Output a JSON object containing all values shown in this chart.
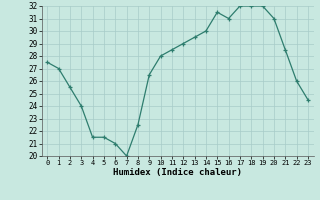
{
  "x": [
    0,
    1,
    2,
    3,
    4,
    5,
    6,
    7,
    8,
    9,
    10,
    11,
    12,
    13,
    14,
    15,
    16,
    17,
    18,
    19,
    20,
    21,
    22,
    23
  ],
  "y": [
    27.5,
    27.0,
    25.5,
    24.0,
    21.5,
    21.5,
    21.0,
    20.0,
    22.5,
    26.5,
    28.0,
    28.5,
    29.0,
    29.5,
    30.0,
    31.5,
    31.0,
    32.0,
    32.0,
    32.0,
    31.0,
    28.5,
    26.0,
    24.5
  ],
  "xlabel": "Humidex (Indice chaleur)",
  "ylim": [
    20,
    32
  ],
  "xlim": [
    -0.5,
    23.5
  ],
  "yticks": [
    20,
    21,
    22,
    23,
    24,
    25,
    26,
    27,
    28,
    29,
    30,
    31,
    32
  ],
  "xticks": [
    0,
    1,
    2,
    3,
    4,
    5,
    6,
    7,
    8,
    9,
    10,
    11,
    12,
    13,
    14,
    15,
    16,
    17,
    18,
    19,
    20,
    21,
    22,
    23
  ],
  "line_color": "#2e7d6e",
  "bg_color": "#c8e8e0",
  "grid_color": "#a8ccc8",
  "text_color": "#000000"
}
